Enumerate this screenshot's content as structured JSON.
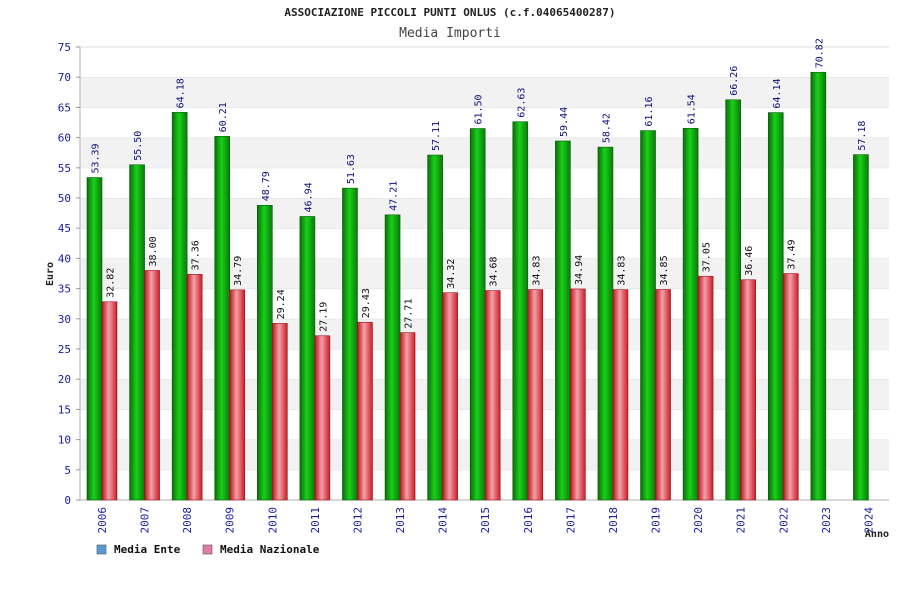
{
  "chart_data": {
    "type": "bar",
    "title": "ASSOCIAZIONE PICCOLI PUNTI ONLUS (c.f.04065400287)",
    "subtitle": "Media Importi",
    "xlabel": "Anno",
    "ylabel": "Euro",
    "ylim": [
      0,
      75
    ],
    "yticks": [
      0,
      5,
      10,
      15,
      20,
      25,
      30,
      35,
      40,
      45,
      50,
      55,
      60,
      65,
      70,
      75
    ],
    "grid": "horizontal-bands",
    "legend_position": "bottom-left",
    "categories": [
      "2006",
      "2007",
      "2008",
      "2009",
      "2010",
      "2011",
      "2012",
      "2013",
      "2014",
      "2015",
      "2016",
      "2017",
      "2018",
      "2019",
      "2020",
      "2021",
      "2022",
      "2023",
      "2024"
    ],
    "series": [
      {
        "name": "Media Ente",
        "legend_color": "#5b9bd5",
        "color": "#1fae1f",
        "values": [
          53.39,
          55.5,
          64.18,
          60.21,
          48.79,
          46.94,
          51.63,
          47.21,
          57.11,
          61.5,
          62.63,
          59.44,
          58.42,
          61.16,
          61.54,
          66.26,
          64.14,
          70.82,
          57.18
        ],
        "labels": [
          "53.39",
          "55.50",
          "64.18",
          "60.21",
          "48.79",
          "46.94",
          "51.63",
          "47.21",
          "57.11",
          "61.50",
          "62.63",
          "59.44",
          "58.42",
          "61.16",
          "61.54",
          "66.26",
          "64.14",
          "70.82",
          "57.18"
        ]
      },
      {
        "name": "Media Nazionale",
        "legend_color": "#e07aa8",
        "color": "#e0303a",
        "values": [
          32.82,
          38.0,
          37.36,
          34.79,
          29.24,
          27.19,
          29.43,
          27.71,
          34.32,
          34.68,
          34.83,
          34.94,
          34.83,
          34.85,
          37.05,
          36.46,
          37.49,
          null,
          null
        ],
        "labels": [
          "32.82",
          "38.00",
          "37.36",
          "34.79",
          "29.24",
          "27.19",
          "29.43",
          "27.71",
          "34.32",
          "34.68",
          "34.83",
          "34.94",
          "34.83",
          "34.85",
          "37.05",
          "36.46",
          "37.49",
          "",
          ""
        ]
      }
    ]
  }
}
